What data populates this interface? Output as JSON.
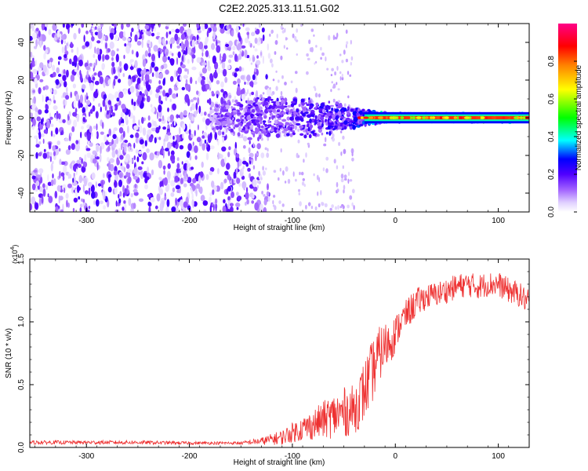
{
  "title": "C2E2.2025.313.11.51.G02",
  "chart_data": [
    {
      "type": "heatmap",
      "name": "spectrogram",
      "xlabel": "Height of straight line (km)",
      "ylabel": "Frequency (Hz)",
      "xlim": [
        -355,
        130
      ],
      "ylim": [
        -50,
        50
      ],
      "xticks": [
        -300,
        -200,
        -100,
        0,
        100
      ],
      "yticks": [
        -40,
        -20,
        0,
        20,
        40
      ],
      "colorbar": {
        "label": "Normalized spectral amplitude",
        "range": [
          0,
          1
        ],
        "ticks": [
          "0.0",
          "0.2",
          "0.4",
          "0.6",
          "0.8"
        ],
        "tick_values": [
          0,
          0.2,
          0.4,
          0.6,
          0.8
        ],
        "colors": [
          "#ffffff",
          "#c8a0ff",
          "#7a00ff",
          "#0000ff",
          "#00ffff",
          "#00ff00",
          "#ffff00",
          "#ff8000",
          "#ff0000",
          "#ff00a0"
        ]
      },
      "signal": {
        "onset_height_km": -180,
        "center_frequency_hz": 0,
        "description_points_height_km": [
          -180,
          -150,
          -120,
          -100,
          -80,
          -60,
          -40,
          -20,
          0,
          50,
          100,
          130
        ],
        "line_amplitude": [
          0.25,
          0.3,
          0.35,
          0.35,
          0.4,
          0.4,
          0.45,
          0.6,
          0.8,
          0.85,
          0.85,
          0.85
        ],
        "frequency_spread_hz": [
          6,
          8,
          10,
          9,
          9,
          7,
          5,
          3,
          2,
          2,
          2,
          2
        ]
      }
    },
    {
      "type": "line",
      "name": "snr",
      "xlabel": "Height of straight line (km)",
      "ylabel": "SNR (10 * v/v)",
      "multiplier_label": "(x10",
      "multiplier_exp": "4",
      "multiplier_close": ")",
      "xlim": [
        -355,
        130
      ],
      "ylim": [
        0,
        1.5
      ],
      "xticks": [
        -300,
        -200,
        -100,
        0,
        100
      ],
      "yticks": [
        "0.0",
        "0.5",
        "1.0",
        "1.5"
      ],
      "ytick_values": [
        0,
        0.5,
        1.0,
        1.5
      ],
      "color": "#ee3030",
      "x": [
        -355,
        -300,
        -250,
        -200,
        -150,
        -130,
        -110,
        -100,
        -90,
        -80,
        -70,
        -60,
        -50,
        -40,
        -30,
        -25,
        -20,
        -15,
        -10,
        -5,
        0,
        5,
        10,
        15,
        20,
        30,
        40,
        50,
        60,
        70,
        80,
        90,
        100,
        110,
        120,
        130
      ],
      "y": [
        0.04,
        0.04,
        0.04,
        0.035,
        0.035,
        0.05,
        0.08,
        0.12,
        0.15,
        0.18,
        0.22,
        0.25,
        0.28,
        0.3,
        0.45,
        0.55,
        0.65,
        0.75,
        0.8,
        0.85,
        0.9,
        1.0,
        1.05,
        1.1,
        1.15,
        1.2,
        1.22,
        1.25,
        1.28,
        1.3,
        1.28,
        1.3,
        1.3,
        1.25,
        1.22,
        1.15
      ],
      "noise_amplitude": [
        0.015,
        0.015,
        0.015,
        0.012,
        0.012,
        0.03,
        0.06,
        0.08,
        0.1,
        0.12,
        0.15,
        0.18,
        0.2,
        0.2,
        0.25,
        0.25,
        0.25,
        0.22,
        0.2,
        0.18,
        0.15,
        0.12,
        0.12,
        0.12,
        0.12,
        0.1,
        0.1,
        0.1,
        0.1,
        0.1,
        0.1,
        0.1,
        0.1,
        0.1,
        0.1,
        0.1
      ]
    }
  ]
}
